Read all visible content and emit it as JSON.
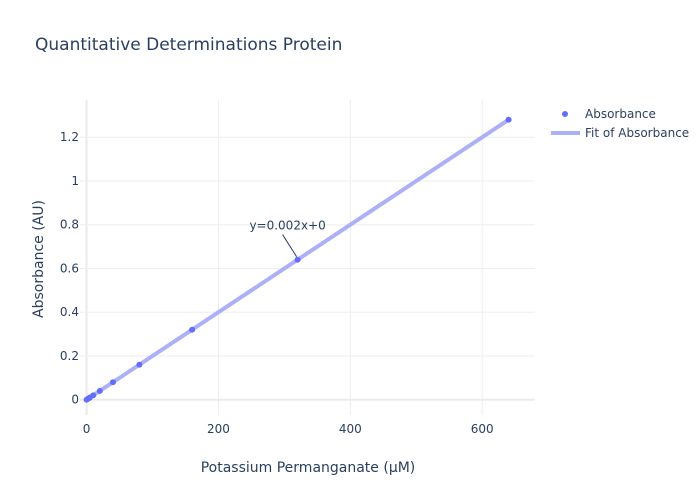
{
  "chart_data": {
    "type": "scatter",
    "title": "Quantitative Determinations Protein",
    "xlabel": "Potassium Permanganate (μM)",
    "ylabel": "Absorbance (AU)",
    "xlim": [
      -10,
      680
    ],
    "ylim": [
      -0.07,
      1.37
    ],
    "x_ticks": [
      0,
      200,
      400,
      600
    ],
    "y_ticks": [
      0,
      0.2,
      0.4,
      0.6,
      0.8,
      1,
      1.2
    ],
    "grid": true,
    "legend_position": "top-right",
    "series": [
      {
        "name": "Absorbance",
        "kind": "markers",
        "color": "#636efa",
        "x": [
          0,
          2.5,
          5,
          10,
          20,
          40,
          80,
          160,
          320,
          640
        ],
        "y": [
          0,
          0.005,
          0.01,
          0.02,
          0.04,
          0.08,
          0.16,
          0.32,
          0.64,
          1.28
        ]
      },
      {
        "name": "Fit of Absorbance",
        "kind": "line",
        "color": "#abb0f8",
        "x": [
          0,
          640
        ],
        "y": [
          0,
          1.28
        ]
      }
    ],
    "annotations": [
      {
        "text": "y=0.002x+0",
        "x": 320,
        "y": 0.64
      }
    ]
  }
}
